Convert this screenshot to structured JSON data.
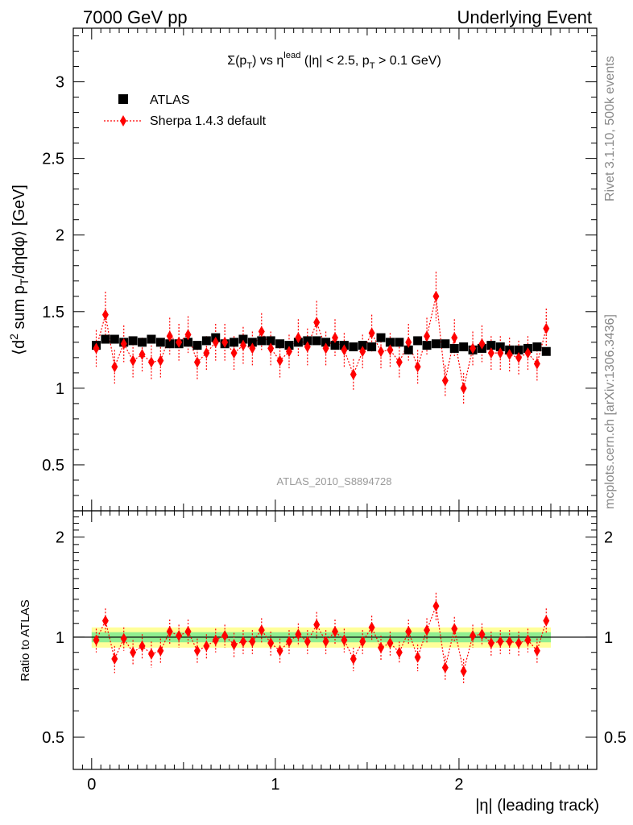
{
  "header": {
    "left": "7000 GeV pp",
    "right": "Underlying Event"
  },
  "side": {
    "rivet": "Rivet 3.1.10,  500k events",
    "mcplots": "mcplots.cern.ch [arXiv:1306.3436]"
  },
  "analysis_id": "ATLAS_2010_S8894728",
  "colors": {
    "data": "#000000",
    "mc": "#ff0000",
    "band_inner": "#90ee90",
    "band_outer": "#ffff99"
  },
  "chart_data": [
    {
      "type": "scatter",
      "panel": "main",
      "title": "Σ(p_T) vs η^lead (|η| < 2.5, p_T > 0.1 GeV)",
      "xlabel": "|η| (leading track)",
      "ylabel": "⟨d² sum p_T/dηdφ⟩ [GeV]",
      "xlim": [
        -0.1,
        2.75
      ],
      "ylim": [
        0.2,
        3.35
      ],
      "yticks": [
        0.5,
        1,
        1.5,
        2,
        2.5,
        3
      ],
      "ytick_labels": [
        "0.5",
        "1",
        "1.5",
        "2",
        "2.5",
        "3"
      ],
      "legend": {
        "position": "top-left",
        "entries": [
          "ATLAS",
          "Sherpa 1.4.3 default"
        ]
      },
      "x": [
        0.025,
        0.075,
        0.125,
        0.175,
        0.225,
        0.275,
        0.325,
        0.375,
        0.425,
        0.475,
        0.525,
        0.575,
        0.625,
        0.675,
        0.725,
        0.775,
        0.825,
        0.875,
        0.925,
        0.975,
        1.025,
        1.075,
        1.125,
        1.175,
        1.225,
        1.275,
        1.325,
        1.375,
        1.425,
        1.475,
        1.525,
        1.575,
        1.625,
        1.675,
        1.725,
        1.775,
        1.825,
        1.875,
        1.925,
        1.975,
        2.025,
        2.075,
        2.125,
        2.175,
        2.225,
        2.275,
        2.325,
        2.375,
        2.425,
        2.475
      ],
      "series": [
        {
          "name": "ATLAS",
          "marker": "square",
          "values": [
            1.28,
            1.32,
            1.32,
            1.3,
            1.31,
            1.3,
            1.32,
            1.3,
            1.29,
            1.29,
            1.3,
            1.28,
            1.31,
            1.33,
            1.29,
            1.3,
            1.32,
            1.3,
            1.31,
            1.31,
            1.29,
            1.28,
            1.3,
            1.31,
            1.31,
            1.3,
            1.28,
            1.28,
            1.27,
            1.28,
            1.27,
            1.33,
            1.3,
            1.3,
            1.25,
            1.31,
            1.28,
            1.29,
            1.29,
            1.26,
            1.27,
            1.25,
            1.26,
            1.28,
            1.27,
            1.25,
            1.25,
            1.26,
            1.27,
            1.24
          ],
          "yerr": [
            0.02,
            0.02,
            0.02,
            0.02,
            0.02,
            0.02,
            0.02,
            0.02,
            0.02,
            0.02,
            0.02,
            0.02,
            0.02,
            0.02,
            0.02,
            0.02,
            0.02,
            0.02,
            0.02,
            0.02,
            0.02,
            0.02,
            0.02,
            0.02,
            0.02,
            0.02,
            0.02,
            0.02,
            0.02,
            0.02,
            0.02,
            0.02,
            0.02,
            0.02,
            0.02,
            0.02,
            0.02,
            0.02,
            0.02,
            0.02,
            0.02,
            0.02,
            0.02,
            0.02,
            0.02,
            0.02,
            0.02,
            0.02,
            0.02,
            0.02
          ]
        },
        {
          "name": "Sherpa 1.4.3 default",
          "marker": "diamond",
          "values": [
            1.26,
            1.48,
            1.14,
            1.29,
            1.18,
            1.22,
            1.17,
            1.18,
            1.34,
            1.3,
            1.35,
            1.17,
            1.23,
            1.3,
            1.3,
            1.23,
            1.28,
            1.26,
            1.37,
            1.26,
            1.18,
            1.24,
            1.33,
            1.27,
            1.43,
            1.26,
            1.33,
            1.25,
            1.09,
            1.24,
            1.36,
            1.24,
            1.25,
            1.17,
            1.3,
            1.14,
            1.34,
            1.6,
            1.05,
            1.33,
            1.0,
            1.26,
            1.29,
            1.23,
            1.23,
            1.22,
            1.2,
            1.23,
            1.16,
            1.39
          ],
          "yerr": [
            0.12,
            0.15,
            0.11,
            0.12,
            0.11,
            0.11,
            0.11,
            0.11,
            0.12,
            0.12,
            0.12,
            0.11,
            0.11,
            0.12,
            0.12,
            0.11,
            0.12,
            0.11,
            0.12,
            0.11,
            0.11,
            0.11,
            0.12,
            0.12,
            0.14,
            0.11,
            0.12,
            0.11,
            0.1,
            0.11,
            0.12,
            0.11,
            0.11,
            0.1,
            0.12,
            0.11,
            0.12,
            0.16,
            0.1,
            0.12,
            0.1,
            0.11,
            0.12,
            0.11,
            0.11,
            0.11,
            0.11,
            0.11,
            0.11,
            0.13
          ]
        }
      ]
    },
    {
      "type": "scatter",
      "panel": "ratio",
      "ylabel": "Ratio to ATLAS",
      "xlabel": "|η| (leading track)",
      "xlim": [
        -0.1,
        2.75
      ],
      "ylim": [
        0.4,
        2.4
      ],
      "log_scale_y": true,
      "yticks": [
        0.5,
        1,
        2
      ],
      "ytick_labels": [
        "0.5",
        "1",
        "2"
      ],
      "xticks": [
        0,
        1,
        2
      ],
      "xtick_labels": [
        "0",
        "1",
        "2"
      ],
      "band_inner_halfwidth": 0.035,
      "band_outer_halfwidth": 0.07,
      "x": [
        0.025,
        0.075,
        0.125,
        0.175,
        0.225,
        0.275,
        0.325,
        0.375,
        0.425,
        0.475,
        0.525,
        0.575,
        0.625,
        0.675,
        0.725,
        0.775,
        0.825,
        0.875,
        0.925,
        0.975,
        1.025,
        1.075,
        1.125,
        1.175,
        1.225,
        1.275,
        1.325,
        1.375,
        1.425,
        1.475,
        1.525,
        1.575,
        1.625,
        1.675,
        1.725,
        1.775,
        1.825,
        1.875,
        1.925,
        1.975,
        2.025,
        2.075,
        2.125,
        2.175,
        2.225,
        2.275,
        2.325,
        2.375,
        2.425,
        2.475
      ],
      "series": [
        {
          "name": "Sherpa 1.4.3 default",
          "values": [
            0.98,
            1.12,
            0.86,
            0.99,
            0.9,
            0.94,
            0.89,
            0.91,
            1.04,
            1.01,
            1.04,
            0.91,
            0.94,
            0.98,
            1.01,
            0.95,
            0.97,
            0.97,
            1.05,
            0.96,
            0.91,
            0.97,
            1.02,
            0.97,
            1.09,
            0.97,
            1.04,
            0.98,
            0.86,
            0.97,
            1.07,
            0.93,
            0.96,
            0.9,
            1.04,
            0.87,
            1.05,
            1.24,
            0.81,
            1.06,
            0.79,
            1.01,
            1.02,
            0.96,
            0.97,
            0.97,
            0.96,
            0.98,
            0.91,
            1.12
          ],
          "yerr": [
            0.08,
            0.1,
            0.08,
            0.08,
            0.08,
            0.08,
            0.08,
            0.08,
            0.09,
            0.08,
            0.09,
            0.08,
            0.08,
            0.08,
            0.08,
            0.08,
            0.08,
            0.08,
            0.09,
            0.08,
            0.08,
            0.08,
            0.08,
            0.08,
            0.1,
            0.08,
            0.09,
            0.08,
            0.07,
            0.08,
            0.09,
            0.08,
            0.08,
            0.07,
            0.09,
            0.08,
            0.09,
            0.12,
            0.07,
            0.09,
            0.07,
            0.08,
            0.08,
            0.08,
            0.08,
            0.08,
            0.08,
            0.08,
            0.08,
            0.1
          ]
        }
      ]
    }
  ]
}
